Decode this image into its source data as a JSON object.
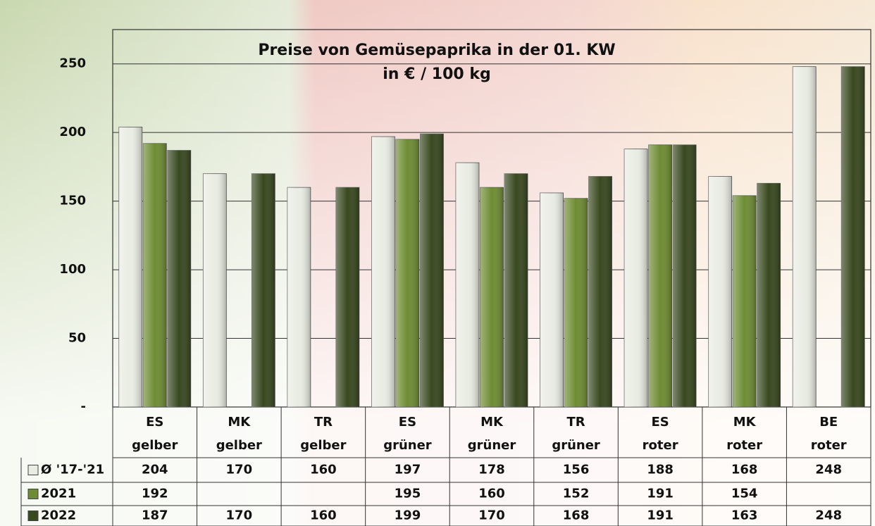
{
  "chart_data": {
    "type": "bar",
    "title": "Preise von Gemüsepaprika in der 01. KW",
    "subtitle": "in € / 100 kg",
    "categories": [
      [
        "ES",
        "gelber"
      ],
      [
        "MK",
        "gelber"
      ],
      [
        "TR",
        "gelber"
      ],
      [
        "ES",
        "grüner"
      ],
      [
        "MK",
        "grüner"
      ],
      [
        "TR",
        "grüner"
      ],
      [
        "ES",
        "roter"
      ],
      [
        "MK",
        "roter"
      ],
      [
        "BE",
        "roter"
      ]
    ],
    "series": [
      {
        "name": "Ø '17-'21",
        "color": "#e9ece2",
        "values": [
          204,
          170,
          160,
          197,
          178,
          156,
          188,
          168,
          248
        ]
      },
      {
        "name": "2021",
        "color": "#6e8c33",
        "values": [
          192,
          null,
          null,
          195,
          160,
          152,
          191,
          154,
          null
        ]
      },
      {
        "name": "2022",
        "color": "#38481f",
        "values": [
          187,
          170,
          160,
          199,
          170,
          168,
          191,
          163,
          248
        ]
      }
    ],
    "ylim": [
      0,
      275
    ],
    "yticks": [
      {
        "value": 0,
        "label": "-"
      },
      50,
      100,
      150,
      200,
      250
    ],
    "grid": true
  }
}
